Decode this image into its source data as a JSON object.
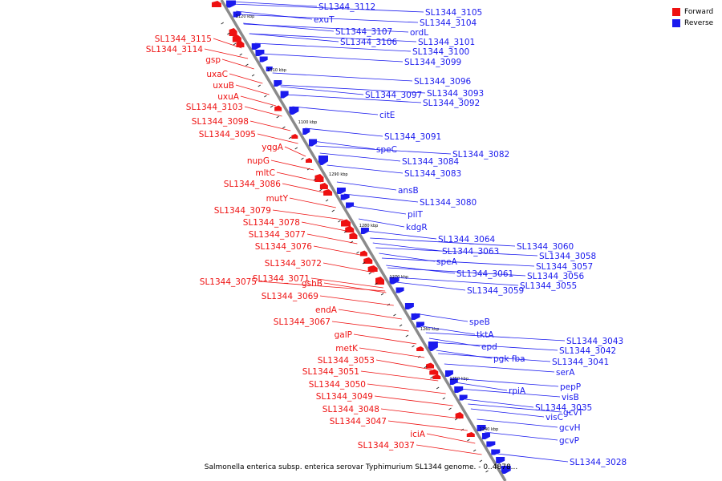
{
  "caption": "Salmonella enterica subsp. enterica serovar Typhimurium SL1344 genome. - 0..4878...",
  "legend": [
    {
      "label": "Forward",
      "color": "#ee1111"
    },
    {
      "label": "Reverse",
      "color": "#1a1aee"
    }
  ],
  "colors": {
    "forward": "#ee1111",
    "reverse": "#1a1aee",
    "axis": "#7f7f7f"
  },
  "ticks": [
    "1120 kbp",
    "1110 kbp",
    "1100 kbp",
    "1290 kbp",
    "1280 kbp",
    "1270 kbp",
    "1260 kbp",
    "1250 kbp",
    "1240 kbp"
  ],
  "forward_genes": [
    "SL1344_3115",
    "SL1344_3114",
    "gsp",
    "uxaC",
    "uxuB",
    "uxuA",
    "SL1344_3103",
    "SL1344_3098",
    "SL1344_3095",
    "yqgA",
    "nupG",
    "mltC",
    "SL1344_3086",
    "mutY",
    "SL1344_3079",
    "SL1344_3078",
    "SL1344_3077",
    "SL1344_3076",
    "SL1344_3072",
    "SL1344_3075",
    "SL1344_3071",
    "gshB",
    "SL1344_3069",
    "endA",
    "SL1344_3067",
    "galP",
    "metK",
    "SL1344_3053",
    "SL1344_3051",
    "SL1344_3050",
    "SL1344_3049",
    "SL1344_3048",
    "SL1344_3047",
    "iciA",
    "SL1344_3037"
  ],
  "reverse_genes": [
    "SL1344_3112",
    "exuT",
    "SL1344_3107",
    "SL1344_3106",
    "SL1344_3105",
    "SL1344_3104",
    "ordL",
    "SL1344_3101",
    "SL1344_3100",
    "SL1344_3099",
    "SL1344_3096",
    "SL1344_3097",
    "SL1344_3093",
    "SL1344_3092",
    "citE",
    "SL1344_3091",
    "speC",
    "SL1344_3084",
    "SL1344_3082",
    "SL1344_3083",
    "ansB",
    "SL1344_3080",
    "pilT",
    "kdgR",
    "SL1344_3064",
    "SL1344_3063",
    "speA",
    "SL1344_3061",
    "SL1344_3060",
    "SL1344_3058",
    "SL1344_3057",
    "SL1344_3056",
    "SL1344_3059",
    "SL1344_3055",
    "speB",
    "tktA",
    "epd",
    "pgk fba",
    "SL1344_3043",
    "SL1344_3042",
    "SL1344_3041",
    "serA",
    "rpiA",
    "pepP",
    "visB",
    "SL1344_3035",
    "visC",
    "gcvT",
    "gcvH",
    "gcvP",
    "SL1344_3028"
  ]
}
